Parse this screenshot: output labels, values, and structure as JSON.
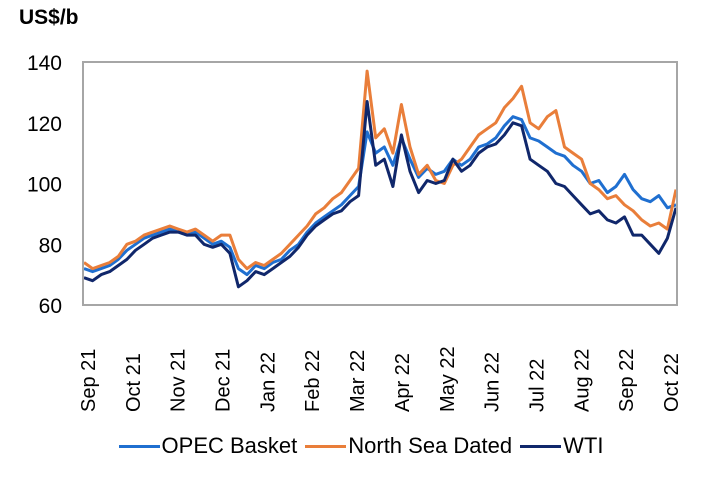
{
  "chart_data": {
    "type": "line",
    "title": "",
    "ylabel": "US$/b",
    "xlabel": "",
    "ylim": [
      60,
      140
    ],
    "yticks": [
      "60",
      "80",
      "100",
      "120",
      "140"
    ],
    "grid": false,
    "legend_position": "bottom",
    "x_tick_labels": [
      "Sep 21",
      "Oct 21",
      "Nov 21",
      "Dec 21",
      "Jan 22",
      "Feb 22",
      "Mar 22",
      "Apr 22",
      "May 22",
      "Jun 22",
      "Jul 22",
      "Aug 22",
      "Sep 22",
      "Oct 22"
    ],
    "x_period": "weekly, Sep 2021 - Oct 2022",
    "series": [
      {
        "name": "OPEC Basket",
        "color": "#1f6fd0",
        "values": [
          72,
          71,
          72,
          73,
          75,
          78,
          80,
          82,
          83,
          84,
          85,
          84,
          83,
          84,
          82,
          80,
          81,
          79,
          72,
          70,
          73,
          72,
          74,
          75,
          78,
          80,
          84,
          87,
          89,
          91,
          93,
          96,
          99,
          117,
          110,
          112,
          106,
          115,
          108,
          102,
          105,
          103,
          104,
          108,
          106,
          108,
          112,
          113,
          115,
          119,
          122,
          121,
          115,
          114,
          112,
          110,
          109,
          106,
          104,
          100,
          101,
          97,
          99,
          103,
          98,
          95,
          94,
          96,
          92,
          93
        ]
      },
      {
        "name": "North Sea Dated",
        "color": "#e97e3a",
        "values": [
          74,
          72,
          73,
          74,
          76,
          80,
          81,
          83,
          84,
          85,
          86,
          85,
          84,
          85,
          83,
          81,
          83,
          83,
          75,
          72,
          74,
          73,
          75,
          77,
          80,
          83,
          86,
          90,
          92,
          95,
          97,
          101,
          105,
          137,
          115,
          118,
          110,
          126,
          112,
          103,
          106,
          101,
          100,
          106,
          108,
          112,
          116,
          118,
          120,
          125,
          128,
          132,
          120,
          118,
          122,
          124,
          112,
          110,
          108,
          100,
          98,
          95,
          96,
          93,
          91,
          88,
          86,
          87,
          85,
          98
        ]
      },
      {
        "name": "WTI",
        "color": "#10276b",
        "values": [
          69,
          68,
          70,
          71,
          73,
          75,
          78,
          80,
          82,
          83,
          84,
          84,
          83,
          83,
          80,
          79,
          80,
          77,
          66,
          68,
          71,
          70,
          72,
          74,
          76,
          79,
          83,
          86,
          88,
          90,
          91,
          94,
          96,
          127,
          106,
          108,
          99,
          116,
          104,
          97,
          101,
          100,
          101,
          108,
          104,
          106,
          110,
          112,
          113,
          116,
          120,
          119,
          108,
          106,
          104,
          100,
          99,
          96,
          93,
          90,
          91,
          88,
          87,
          89,
          83,
          83,
          80,
          77,
          82,
          92
        ]
      }
    ]
  }
}
